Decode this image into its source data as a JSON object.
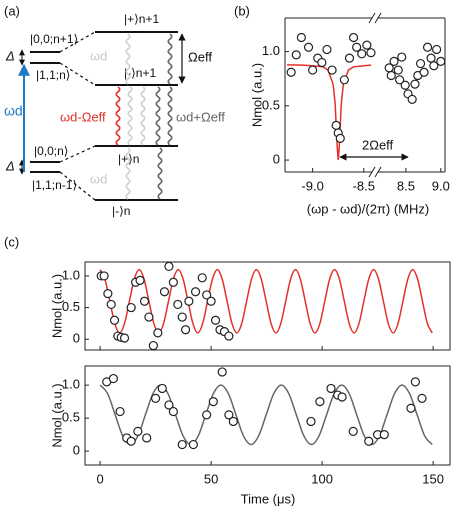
{
  "diagram": {
    "label": "(a)",
    "upper": {
      "left_top": "|0,0;n+1⟩",
      "left_bottom": "|1,1;n⟩",
      "right_top": "|+⟩n+1",
      "right_bottom": "|-⟩n+1",
      "splitting": "Ωeff",
      "drive": "ωd",
      "detuning": "Δ"
    },
    "lower": {
      "left_top": "|0,0;n⟩",
      "left_bottom": "|1,1;n-1⟩",
      "right_top": "|+⟩n",
      "right_bottom": "|-⟩n",
      "drive": "ωd",
      "detuning": "Δ"
    },
    "drive_arrow": "ωd",
    "red_transition": "ωd-Ωeff",
    "gray_transition": "ωd+Ωeff"
  },
  "chart_data": [
    {
      "type": "scatter",
      "label": "(b)",
      "ylabel": "Nmol (a.u.)",
      "xlabel": "(ωp - ωd)/(2π) (MHz)",
      "annotation": "2Ωeff",
      "ylim": [
        -0.11,
        1.31
      ],
      "yticks": [
        0,
        0.5,
        {
          "value": 1,
          "label": "1.0"
        }
      ],
      "segments": [
        {
          "xlim": [
            -9.27,
            -8.42
          ],
          "xticks": [
            {
              "value": -9,
              "label": "-9.0"
            },
            -8.5
          ],
          "x": [
            -9.21,
            -9.16,
            -9.11,
            -9.04,
            -9,
            -8.95,
            -8.91,
            -8.86,
            -8.81,
            -8.77,
            -8.75,
            -8.73,
            -8.69,
            -8.64,
            -8.6,
            -8.57,
            -8.52,
            -8.47,
            -8.43
          ],
          "values": [
            0.81,
            0.97,
            1.13,
            1.04,
            0.83,
            0.94,
            0.9,
            1.02,
            0.83,
            0.32,
            0.25,
            0.2,
            0.74,
            0.94,
            1.13,
            1.04,
            0.98,
            1.06,
            0.99
          ],
          "fit": {
            "color": "#e3302a",
            "x": [
              -9.25,
              -9.1,
              -9,
              -8.9,
              -8.85,
              -8.8,
              -8.78,
              -8.76,
              -8.75,
              -8.74,
              -8.72,
              -8.7,
              -8.65,
              -8.6,
              -8.5,
              -8.43
            ],
            "values": [
              0.878,
              0.876,
              0.87,
              0.86,
              0.83,
              0.7,
              0.52,
              0.12,
              0,
              0.12,
              0.52,
              0.7,
              0.83,
              0.86,
              0.87,
              0.875
            ]
          }
        },
        {
          "xlim": [
            8.1,
            9.06
          ],
          "xticks": [
            8.5,
            {
              "value": 9,
              "label": "9.0"
            }
          ],
          "x": [
            8.26,
            8.29,
            8.33,
            8.39,
            8.41,
            8.44,
            8.49,
            8.53,
            8.59,
            8.63,
            8.67,
            8.71,
            8.76,
            8.81,
            8.86,
            8.9,
            8.94,
            9
          ],
          "values": [
            0.85,
            0.78,
            0.91,
            0.83,
            0.74,
            0.95,
            0.69,
            0.61,
            0.56,
            0.7,
            0.78,
            0.89,
            0.81,
            1.04,
            0.94,
            0.87,
            1.02,
            0.91
          ]
        }
      ]
    },
    {
      "type": "scatter",
      "label": "(c)",
      "ylabel": "Nmol (a.u.)",
      "xtick_labels": false,
      "xlim": [
        -6.8,
        157.6
      ],
      "xticks": [
        0,
        50,
        100,
        150
      ],
      "ylim": [
        -0.17,
        1.22
      ],
      "yticks": [
        0,
        0.5,
        {
          "value": 1,
          "label": "1.0"
        }
      ],
      "x": [
        0.5,
        1.8,
        3.5,
        5,
        6.5,
        8,
        9.5,
        11,
        14,
        16,
        18,
        20,
        22,
        24,
        26,
        29,
        31,
        33,
        35,
        37,
        38.5,
        40,
        43,
        46,
        48,
        50,
        52,
        54,
        56,
        58
      ],
      "values": [
        1,
        1,
        0.72,
        0.55,
        0.3,
        0.05,
        0.03,
        0.02,
        0.5,
        0.9,
        0.93,
        0.6,
        0.35,
        -0.1,
        0.1,
        0.75,
        1.15,
        0.9,
        0.55,
        0.35,
        0.15,
        0.6,
        0.75,
        0.97,
        0.7,
        0.6,
        0.3,
        0.15,
        0.12,
        0.05
      ],
      "fit": {
        "color": "#e3302a",
        "x": [
          0,
          2.2,
          4.4,
          6.6,
          8.8,
          11,
          13.2,
          15.4,
          17.6,
          19.8,
          22,
          24.2,
          26.4,
          28.6,
          30.8,
          33,
          35.2,
          37.4,
          39.6,
          41.8,
          44,
          46.2,
          48.4,
          50.6,
          52.8,
          55,
          57.2,
          59.4,
          61.6,
          63.8,
          66,
          68.2,
          70.4,
          72.6,
          74.8,
          77,
          79.2,
          81.4,
          83.6,
          85.8,
          88,
          90.2,
          92.4,
          94.6,
          96.8,
          99,
          101.2,
          103.4,
          105.6,
          107.8,
          110,
          112.2,
          114.4,
          116.6,
          118.8,
          121,
          123.2,
          125.4,
          127.6,
          129.8,
          132,
          134.2,
          136.4,
          138.6,
          140.8,
          143,
          145.2,
          147.4,
          149.6
        ],
        "values": [
          1.1,
          0.95,
          0.6,
          0.25,
          0.1,
          0.25,
          0.6,
          0.95,
          1.1,
          0.95,
          0.6,
          0.25,
          0.1,
          0.25,
          0.6,
          0.95,
          1.1,
          0.95,
          0.6,
          0.25,
          0.1,
          0.25,
          0.6,
          0.95,
          1.1,
          0.95,
          0.6,
          0.25,
          0.1,
          0.25,
          0.6,
          0.95,
          1.1,
          0.95,
          0.6,
          0.25,
          0.1,
          0.25,
          0.6,
          0.95,
          1.1,
          0.95,
          0.6,
          0.25,
          0.1,
          0.25,
          0.6,
          0.95,
          1.1,
          0.95,
          0.6,
          0.25,
          0.1,
          0.25,
          0.6,
          0.95,
          1.1,
          0.95,
          0.6,
          0.25,
          0.1,
          0.25,
          0.6,
          0.95,
          1.1,
          0.95,
          0.6,
          0.25,
          0.1
        ]
      }
    },
    {
      "type": "scatter",
      "ylabel": "Nmol (a.u.)",
      "xlabel": "Time (μs)",
      "xlim": [
        -6.8,
        157.6
      ],
      "xticks": [
        0,
        50,
        100,
        150
      ],
      "ylim": [
        -0.21,
        1.29
      ],
      "yticks": [
        0,
        0.5,
        {
          "value": 1,
          "label": "1.0"
        }
      ],
      "x": [
        3,
        6,
        9,
        12,
        14,
        17,
        21,
        25,
        28,
        31,
        33,
        37,
        42,
        48,
        51,
        55,
        58,
        60,
        95,
        99,
        104,
        107,
        109,
        114,
        121,
        125,
        128,
        140,
        142,
        145
      ],
      "values": [
        1.05,
        1.1,
        0.6,
        0.2,
        0.15,
        0.3,
        0.2,
        0.8,
        0.95,
        0.7,
        0.6,
        0.1,
        0.1,
        0.55,
        0.75,
        1.2,
        0.55,
        0.45,
        0.45,
        0.75,
        0.95,
        0.85,
        0.82,
        0.3,
        0.15,
        0.25,
        0.25,
        0.65,
        1.05,
        0.8
      ],
      "fit": {
        "color": "#666666",
        "x": [
          0,
          3.4,
          6.8,
          10.2,
          13.6,
          17,
          20.4,
          23.8,
          27.2,
          30.6,
          34,
          37.4,
          40.8,
          44.2,
          47.6,
          51,
          54.4,
          57.8,
          61.2,
          64.6,
          68,
          71.4,
          74.8,
          78.2,
          81.6,
          85,
          88.4,
          91.8,
          95.2,
          98.6,
          102,
          105.4,
          108.8,
          112.2,
          115.6,
          119,
          122.4,
          125.8,
          129.2,
          132.6,
          136,
          139.4,
          142.8,
          146.2,
          149.6
        ],
        "values": [
          1,
          0.87,
          0.55,
          0.23,
          0.1,
          0.23,
          0.55,
          0.87,
          1,
          0.87,
          0.55,
          0.23,
          0.1,
          0.23,
          0.55,
          0.87,
          1,
          0.87,
          0.55,
          0.23,
          0.1,
          0.23,
          0.55,
          0.87,
          1,
          0.87,
          0.55,
          0.23,
          0.1,
          0.23,
          0.55,
          0.87,
          1,
          0.87,
          0.55,
          0.23,
          0.1,
          0.23,
          0.55,
          0.87,
          1,
          0.87,
          0.55,
          0.23,
          0.1
        ]
      }
    }
  ]
}
